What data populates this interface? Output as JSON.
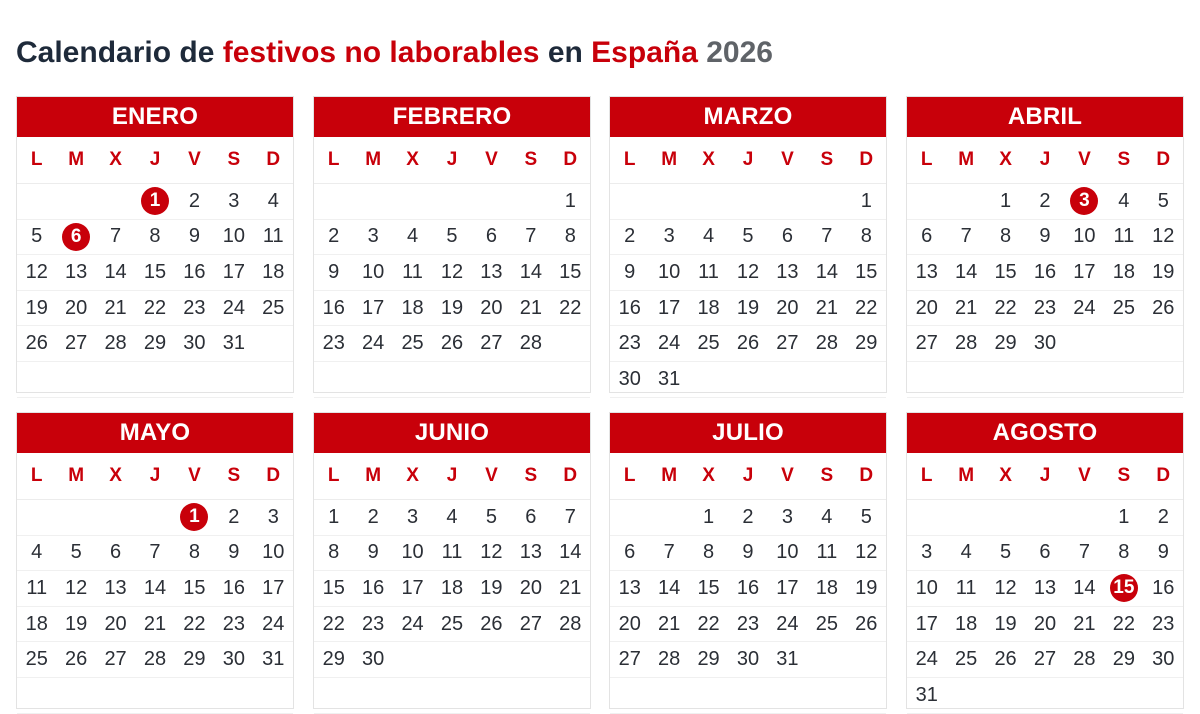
{
  "title": {
    "part1": "Calendario de ",
    "part2": "festivos no laborables",
    "part3": " en ",
    "part4": "España",
    "part5": " 2026"
  },
  "weekdays": [
    "L",
    "M",
    "X",
    "J",
    "V",
    "S",
    "D"
  ],
  "colors": {
    "accent": "#c8000a",
    "title": "#1e2a3a",
    "year": "#5f6368"
  },
  "months": [
    {
      "name": "ENERO",
      "start": 3,
      "days": 31,
      "holidays": [
        1,
        6
      ]
    },
    {
      "name": "FEBRERO",
      "start": 6,
      "days": 28,
      "holidays": []
    },
    {
      "name": "MARZO",
      "start": 6,
      "days": 31,
      "holidays": []
    },
    {
      "name": "ABRIL",
      "start": 2,
      "days": 30,
      "holidays": [
        3
      ]
    },
    {
      "name": "MAYO",
      "start": 4,
      "days": 31,
      "holidays": [
        1
      ]
    },
    {
      "name": "JUNIO",
      "start": 0,
      "days": 30,
      "holidays": []
    },
    {
      "name": "JULIO",
      "start": 2,
      "days": 31,
      "holidays": []
    },
    {
      "name": "AGOSTO",
      "start": 5,
      "days": 31,
      "holidays": [
        15
      ]
    }
  ]
}
